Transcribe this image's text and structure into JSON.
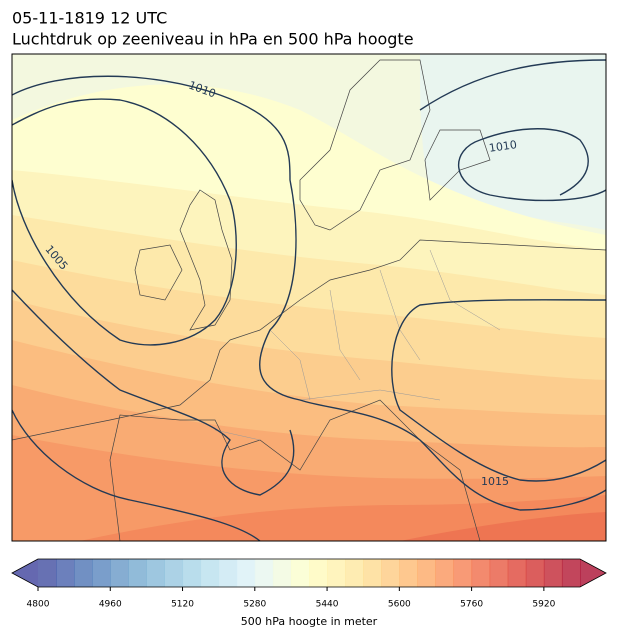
{
  "header": {
    "title": "05-11-1819 12 UTC",
    "subtitle": "Luchtdruk op zeeniveau in hPa en 500 hPa hoogte"
  },
  "map": {
    "contour_labels": [
      1010,
      1010,
      1005,
      1015
    ]
  },
  "colorbar": {
    "label": "500 hPa hoogte in meter",
    "lim": [
      4800,
      6000
    ],
    "step": 40,
    "ticks": [
      4800,
      4960,
      5120,
      5280,
      5440,
      5600,
      5760,
      5920
    ],
    "colormap": [
      "#313695",
      "#4575b4",
      "#74add1",
      "#abd9e9",
      "#e0f3f8",
      "#ffffbf",
      "#fee090",
      "#fdae61",
      "#f46d43",
      "#d73027",
      "#a50026"
    ],
    "alpha": 0.75
  }
}
